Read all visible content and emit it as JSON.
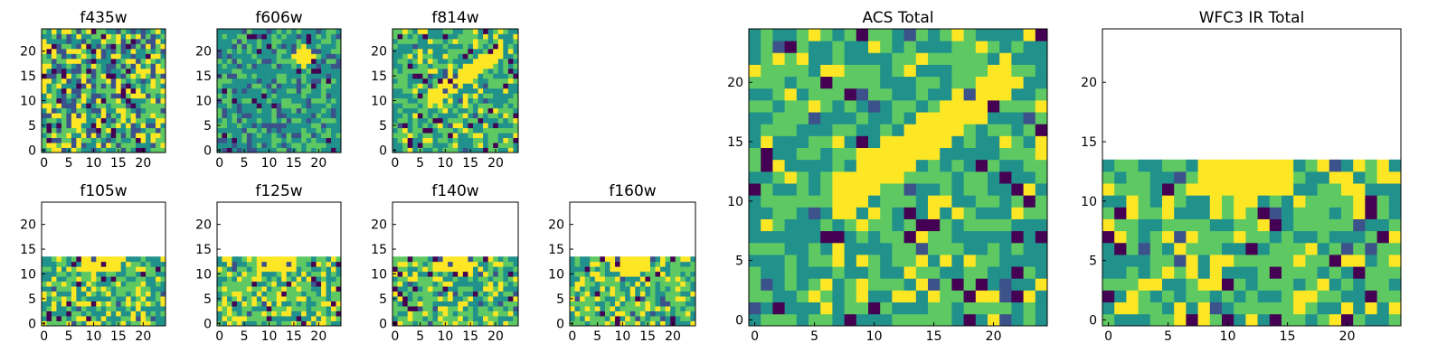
{
  "chart_data": [
    {
      "type": "heatmap",
      "title": "f435w",
      "xticks": [
        0,
        5,
        10,
        15,
        20
      ],
      "yticks": [
        0,
        5,
        10,
        15,
        20
      ],
      "xlim": [
        0,
        24
      ],
      "ylim": [
        0,
        24
      ],
      "valid_rows": 25,
      "pattern": "noise"
    },
    {
      "type": "heatmap",
      "title": "f606w",
      "xticks": [
        0,
        5,
        10,
        15,
        20
      ],
      "yticks": [
        0,
        5,
        10,
        15,
        20
      ],
      "xlim": [
        0,
        24
      ],
      "ylim": [
        0,
        24
      ],
      "valid_rows": 25,
      "pattern": "blob"
    },
    {
      "type": "heatmap",
      "title": "f814w",
      "xticks": [
        0,
        5,
        10,
        15,
        20
      ],
      "yticks": [
        0,
        5,
        10,
        15,
        20
      ],
      "xlim": [
        0,
        24
      ],
      "ylim": [
        0,
        24
      ],
      "valid_rows": 25,
      "pattern": "streak"
    },
    {
      "type": "heatmap",
      "title": "f105w",
      "xticks": [
        0,
        5,
        10,
        15,
        20
      ],
      "yticks": [
        0,
        5,
        10,
        15,
        20
      ],
      "xlim": [
        0,
        24
      ],
      "ylim": [
        0,
        24
      ],
      "valid_rows": 14,
      "pattern": "ir"
    },
    {
      "type": "heatmap",
      "title": "f125w",
      "xticks": [
        0,
        5,
        10,
        15,
        20
      ],
      "yticks": [
        0,
        5,
        10,
        15,
        20
      ],
      "xlim": [
        0,
        24
      ],
      "ylim": [
        0,
        24
      ],
      "valid_rows": 14,
      "pattern": "ir"
    },
    {
      "type": "heatmap",
      "title": "f140w",
      "xticks": [
        0,
        5,
        10,
        15,
        20
      ],
      "yticks": [
        0,
        5,
        10,
        15,
        20
      ],
      "xlim": [
        0,
        24
      ],
      "ylim": [
        0,
        24
      ],
      "valid_rows": 14,
      "pattern": "ir"
    },
    {
      "type": "heatmap",
      "title": "f160w",
      "xticks": [
        0,
        5,
        10,
        15,
        20
      ],
      "yticks": [
        0,
        5,
        10,
        15,
        20
      ],
      "xlim": [
        0,
        24
      ],
      "ylim": [
        0,
        24
      ],
      "valid_rows": 14,
      "pattern": "ir"
    },
    {
      "type": "heatmap",
      "title": "ACS Total",
      "xticks": [
        0,
        5,
        10,
        15,
        20
      ],
      "yticks": [
        0,
        5,
        10,
        15,
        20
      ],
      "xlim": [
        0,
        24
      ],
      "ylim": [
        0,
        24
      ],
      "valid_rows": 25,
      "pattern": "streak"
    },
    {
      "type": "heatmap",
      "title": "WFC3 IR Total",
      "xticks": [
        0,
        5,
        10,
        15,
        20
      ],
      "yticks": [
        0,
        5,
        10,
        15,
        20
      ],
      "xlim": [
        0,
        24
      ],
      "ylim": [
        0,
        24
      ],
      "valid_rows": 14,
      "pattern": "ir"
    }
  ],
  "colormap": [
    "#440154",
    "#3b528b",
    "#21918c",
    "#5ec962",
    "#fde725"
  ]
}
